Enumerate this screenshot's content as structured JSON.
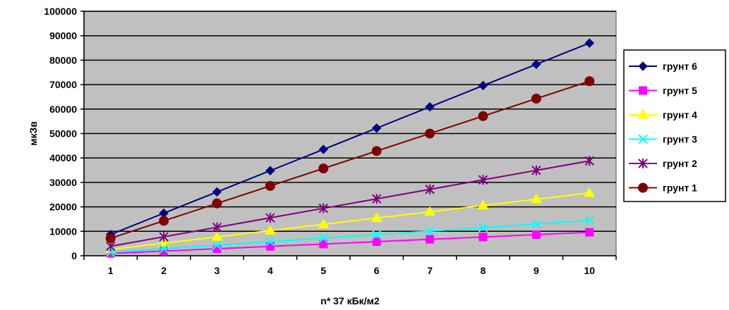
{
  "chart_data": {
    "type": "line",
    "xlabel": "n* 37 кБк/м2",
    "ylabel": "мкЗв",
    "x": [
      1,
      2,
      3,
      4,
      5,
      6,
      7,
      8,
      9,
      10
    ],
    "ylim": [
      0,
      100000
    ],
    "yticks": [
      "0",
      "10000",
      "20000",
      "30000",
      "40000",
      "50000",
      "60000",
      "70000",
      "80000",
      "90000",
      "100000"
    ],
    "xticks": [
      "1",
      "2",
      "3",
      "4",
      "5",
      "6",
      "7",
      "8",
      "9",
      "10"
    ],
    "grid": "horizontal",
    "legend_position": "right",
    "plot_background": "#c0c0c0",
    "series": [
      {
        "name": "грунт 6",
        "color": "#000080",
        "marker": "diamond",
        "values": [
          8700,
          17400,
          26100,
          34800,
          43500,
          52200,
          60900,
          69600,
          78300,
          87000
        ]
      },
      {
        "name": "грунт 5",
        "color": "#ff00ff",
        "marker": "square",
        "values": [
          960,
          1920,
          2880,
          3840,
          4800,
          5760,
          6720,
          7680,
          8640,
          9600
        ]
      },
      {
        "name": "грунт 4",
        "color": "#ffff00",
        "marker": "triangle",
        "values": [
          2570,
          5140,
          7710,
          10280,
          12850,
          15420,
          17990,
          20560,
          23130,
          25700
        ]
      },
      {
        "name": "грунт 3",
        "color": "#00ffff",
        "marker": "x",
        "values": [
          1440,
          2880,
          4320,
          5760,
          7200,
          8640,
          10080,
          11520,
          12960,
          14400
        ]
      },
      {
        "name": "грунт 2",
        "color": "#800080",
        "marker": "star",
        "values": [
          3880,
          7760,
          11640,
          15520,
          19400,
          23280,
          27160,
          31040,
          34920,
          38800
        ]
      },
      {
        "name": "грунт 1",
        "color": "#800000",
        "marker": "circle",
        "values": [
          7140,
          14280,
          21420,
          28560,
          35700,
          42840,
          49980,
          57120,
          64260,
          71400
        ]
      }
    ]
  }
}
